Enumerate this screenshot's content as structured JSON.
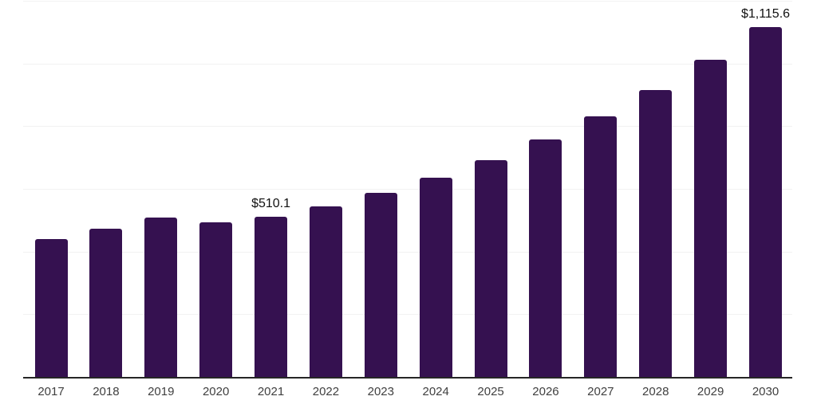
{
  "chart": {
    "background": "#ffffff",
    "bar_color": "#351150",
    "grid_color": "#f2f2f2",
    "axis_color": "#262626",
    "tick_label_color": "#404040",
    "data_label_color": "#111111"
  },
  "chart_data": {
    "type": "bar",
    "title": "",
    "xlabel": "",
    "ylabel": "",
    "categories": [
      "2017",
      "2018",
      "2019",
      "2020",
      "2021",
      "2022",
      "2023",
      "2024",
      "2025",
      "2026",
      "2027",
      "2028",
      "2029",
      "2030"
    ],
    "values": [
      441,
      474,
      509,
      492,
      510.1,
      545,
      588,
      636,
      692,
      758,
      832,
      915,
      1012,
      1115.6
    ],
    "data_labels": {
      "2021": "$510.1",
      "2030": "$1,115.6"
    },
    "ylim": [
      0,
      1200
    ],
    "grid_step": 200,
    "grid": "horizontal",
    "y_axis_tick_labels": "none",
    "legend_position": "none"
  }
}
